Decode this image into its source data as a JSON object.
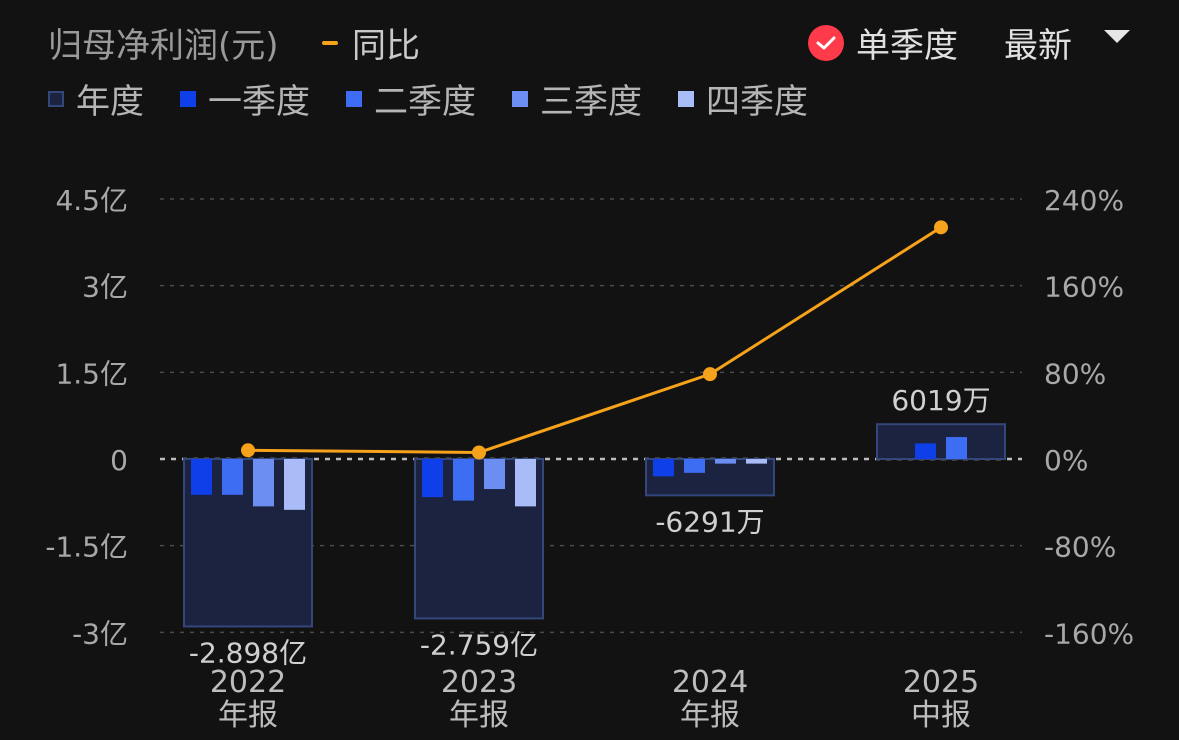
{
  "header": {
    "title": "归母净利润(元)",
    "yoy_label": "同比",
    "single_quarter_label": "单季度",
    "latest_label": "最新"
  },
  "legend": [
    {
      "label": "年度",
      "color": "#1b2340",
      "outline": "#33477a"
    },
    {
      "label": "一季度",
      "color": "#0f3fe8"
    },
    {
      "label": "二季度",
      "color": "#3d6df2"
    },
    {
      "label": "三季度",
      "color": "#6c8ef2"
    },
    {
      "label": "四季度",
      "color": "#a9bcf7"
    }
  ],
  "colors": {
    "background": "#121212",
    "line": "#f7a21b",
    "grid": "#4a4a4a",
    "check": "#ff3b4b"
  },
  "chart_data": {
    "type": "bar",
    "title": "归母净利润(元)",
    "categories": [
      {
        "year": "2022",
        "period": "年报"
      },
      {
        "year": "2023",
        "period": "年报"
      },
      {
        "year": "2024",
        "period": "年报"
      },
      {
        "year": "2025",
        "period": "中报"
      }
    ],
    "annual": {
      "name": "年度",
      "values_yi": [
        -2.898,
        -2.759,
        -0.6291,
        0.6019
      ],
      "labels": [
        "-2.898亿",
        "-2.759亿",
        "-6291万",
        "6019万"
      ]
    },
    "quarterly": [
      {
        "name": "一季度",
        "values_yi": [
          -0.62,
          -0.66,
          -0.3,
          0.27
        ]
      },
      {
        "name": "二季度",
        "values_yi": [
          -0.62,
          -0.72,
          -0.24,
          0.38
        ]
      },
      {
        "name": "三季度",
        "values_yi": [
          -0.82,
          -0.52,
          -0.08,
          null
        ]
      },
      {
        "name": "四季度",
        "values_yi": [
          -0.88,
          -0.82,
          -0.08,
          null
        ]
      }
    ],
    "yoy": {
      "name": "同比",
      "values_pct": [
        8,
        6,
        78,
        213
      ]
    },
    "y_left": {
      "ticks": [
        4.5,
        3,
        1.5,
        0,
        -1.5,
        -3
      ],
      "tick_labels": [
        "4.5亿",
        "3亿",
        "1.5亿",
        "0",
        "-1.5亿",
        "-3亿"
      ],
      "range": [
        -3,
        4.5
      ]
    },
    "y_right": {
      "ticks": [
        240,
        160,
        80,
        0,
        -80,
        -160
      ],
      "tick_labels": [
        "240%",
        "160%",
        "80%",
        "0%",
        "-80%",
        "-160%"
      ],
      "range": [
        -160,
        240
      ]
    },
    "grid": true
  }
}
